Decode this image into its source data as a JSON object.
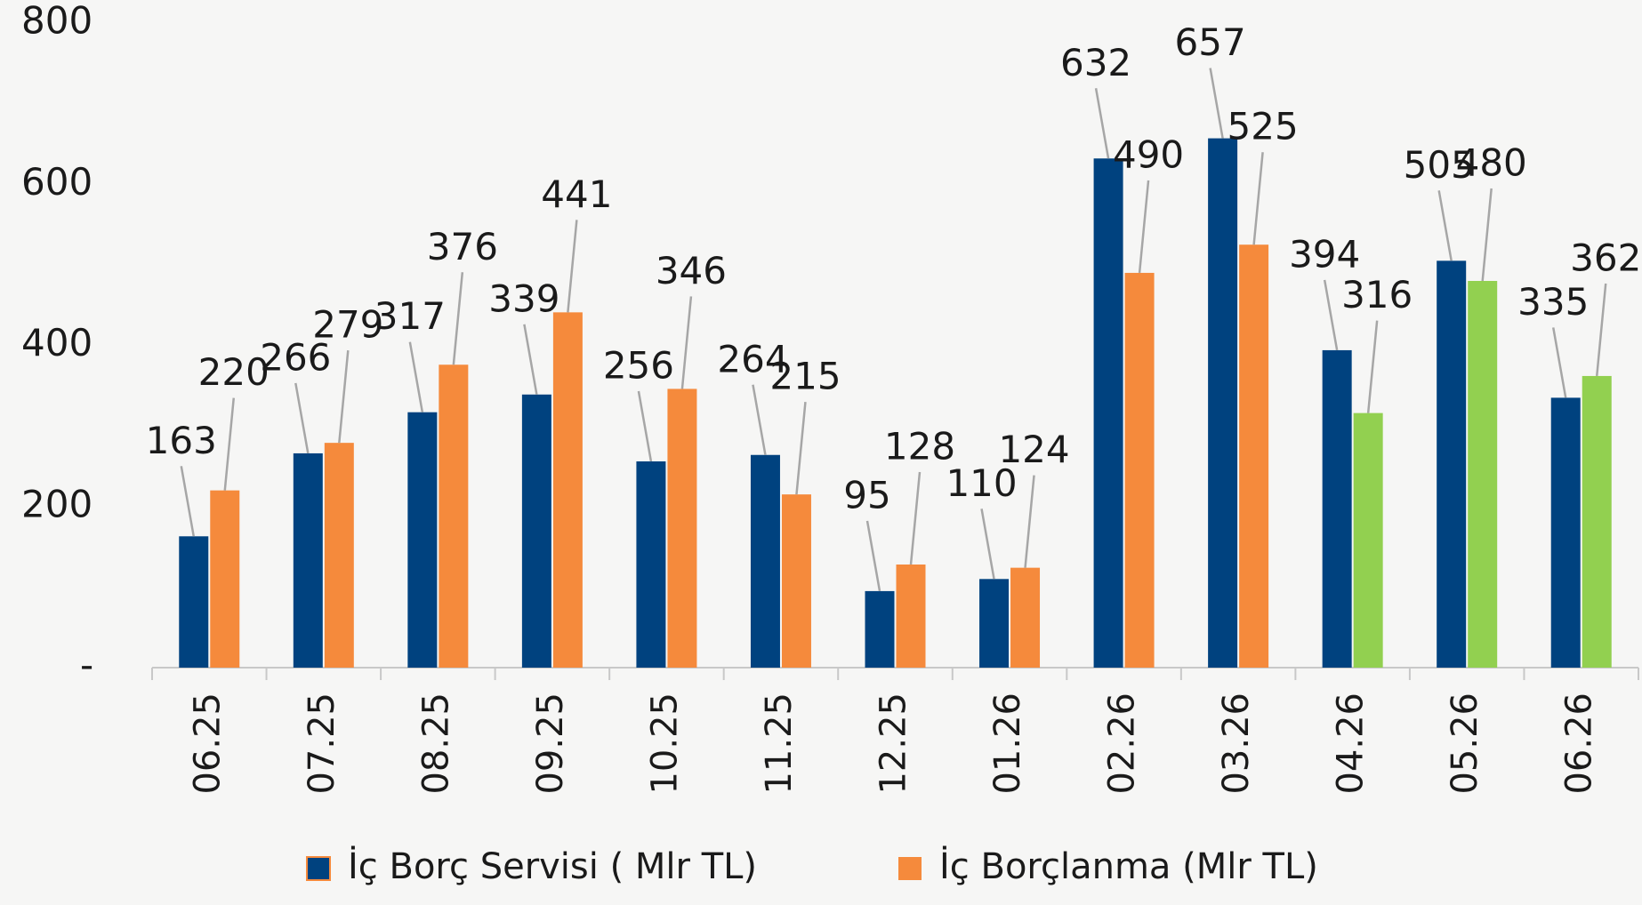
{
  "chart_data": {
    "type": "bar",
    "categories": [
      "06.25",
      "07.25",
      "08.25",
      "09.25",
      "10.25",
      "11.25",
      "12.25",
      "01.26",
      "02.26",
      "03.26",
      "04.26",
      "05.26",
      "06.26"
    ],
    "series": [
      {
        "name": "İç Borç Servisi ( Mlr TL)",
        "color": "#00427f",
        "values": [
          163,
          266,
          317,
          339,
          256,
          264,
          95,
          110,
          632,
          657,
          394,
          505,
          335
        ]
      },
      {
        "name": "İç Borçlanma (Mlr TL)",
        "color": "#f58a3c",
        "colors": [
          "#f58a3c",
          "#f58a3c",
          "#f58a3c",
          "#f58a3c",
          "#f58a3c",
          "#f58a3c",
          "#f58a3c",
          "#f58a3c",
          "#f58a3c",
          "#f58a3c",
          "#92d050",
          "#92d050",
          "#92d050"
        ],
        "values": [
          220,
          279,
          376,
          441,
          346,
          215,
          128,
          124,
          490,
          525,
          316,
          480,
          362
        ]
      }
    ],
    "ylim": [
      0,
      800
    ],
    "yticks": [
      {
        "value": 0,
        "label": "-"
      },
      200,
      400,
      600,
      800
    ],
    "legend": "bottom"
  }
}
